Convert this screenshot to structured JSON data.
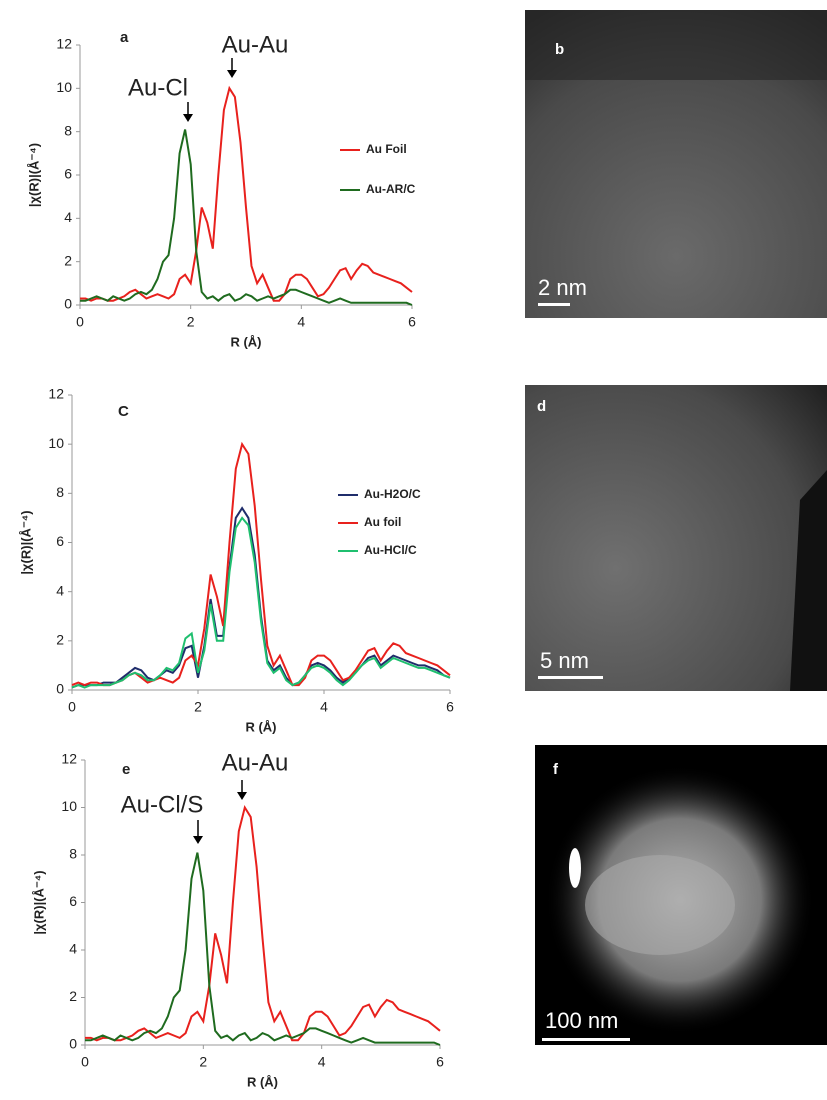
{
  "chart_data": [
    {
      "type": "line",
      "panel_label": "a",
      "xlabel": "R (Å)",
      "ylabel": "|χ(R)|(Å⁻⁴)",
      "xlim": [
        0,
        6
      ],
      "ylim": [
        0,
        12
      ],
      "xticks": [
        0,
        2,
        4,
        6
      ],
      "yticks": [
        0,
        2,
        4,
        6,
        8,
        10,
        12
      ],
      "annotations": [
        "Au-Au",
        "Au-Cl"
      ],
      "x": [
        0,
        0.1,
        0.2,
        0.3,
        0.4,
        0.5,
        0.6,
        0.7,
        0.8,
        0.9,
        1,
        1.1,
        1.2,
        1.3,
        1.4,
        1.5,
        1.6,
        1.7,
        1.8,
        1.9,
        2,
        2.1,
        2.2,
        2.3,
        2.4,
        2.5,
        2.6,
        2.7,
        2.8,
        2.9,
        3,
        3.1,
        3.2,
        3.3,
        3.4,
        3.5,
        3.6,
        3.7,
        3.8,
        3.9,
        4,
        4.1,
        4.2,
        4.3,
        4.4,
        4.5,
        4.6,
        4.7,
        4.8,
        4.9,
        5,
        5.1,
        5.2,
        5.3,
        5.4,
        5.5,
        5.6,
        5.7,
        5.8,
        5.9,
        6
      ],
      "series": [
        {
          "name": "Au Foil",
          "color": "#e8211d",
          "values": [
            0.3,
            0.3,
            0.2,
            0.3,
            0.3,
            0.2,
            0.2,
            0.3,
            0.4,
            0.6,
            0.7,
            0.5,
            0.3,
            0.4,
            0.5,
            0.4,
            0.3,
            0.5,
            1.2,
            1.4,
            1.0,
            2.5,
            4.5,
            3.8,
            2.6,
            6.0,
            9.0,
            10.0,
            9.6,
            7.5,
            4.5,
            1.8,
            1.0,
            1.4,
            0.8,
            0.2,
            0.2,
            0.5,
            1.2,
            1.4,
            1.4,
            1.2,
            0.8,
            0.4,
            0.5,
            0.8,
            1.2,
            1.6,
            1.7,
            1.2,
            1.6,
            1.9,
            1.8,
            1.5,
            1.4,
            1.3,
            1.2,
            1.1,
            1.0,
            0.8,
            0.6
          ]
        },
        {
          "name": "Au-AR/C",
          "color": "#1f6b1f",
          "values": [
            0.2,
            0.2,
            0.3,
            0.4,
            0.3,
            0.2,
            0.4,
            0.3,
            0.2,
            0.3,
            0.5,
            0.6,
            0.5,
            0.7,
            1.2,
            2.0,
            2.3,
            4.0,
            7.0,
            8.1,
            6.5,
            2.5,
            0.6,
            0.3,
            0.4,
            0.2,
            0.4,
            0.5,
            0.2,
            0.3,
            0.5,
            0.4,
            0.2,
            0.3,
            0.4,
            0.3,
            0.4,
            0.5,
            0.7,
            0.7,
            0.6,
            0.5,
            0.4,
            0.3,
            0.2,
            0.1,
            0.2,
            0.3,
            0.2,
            0.1,
            0.1,
            0.1,
            0.1,
            0.1,
            0.1,
            0.1,
            0.1,
            0.1,
            0.1,
            0.1,
            0.0
          ]
        }
      ]
    },
    {
      "type": "line",
      "panel_label": "C",
      "xlabel": "R (Å)",
      "ylabel": "|χ(R)|(Å⁻⁴)",
      "xlim": [
        0,
        6
      ],
      "ylim": [
        0,
        12
      ],
      "xticks": [
        0,
        2,
        4,
        6
      ],
      "yticks": [
        0,
        2,
        4,
        6,
        8,
        10,
        12
      ],
      "x": [
        0,
        0.1,
        0.2,
        0.3,
        0.4,
        0.5,
        0.6,
        0.7,
        0.8,
        0.9,
        1,
        1.1,
        1.2,
        1.3,
        1.4,
        1.5,
        1.6,
        1.7,
        1.8,
        1.9,
        2,
        2.1,
        2.2,
        2.3,
        2.4,
        2.5,
        2.6,
        2.7,
        2.8,
        2.9,
        3,
        3.1,
        3.2,
        3.3,
        3.4,
        3.5,
        3.6,
        3.7,
        3.8,
        3.9,
        4,
        4.1,
        4.2,
        4.3,
        4.4,
        4.5,
        4.6,
        4.7,
        4.8,
        4.9,
        5,
        5.1,
        5.2,
        5.3,
        5.4,
        5.5,
        5.6,
        5.7,
        5.8,
        5.9,
        6
      ],
      "series": [
        {
          "name": "Au-H2O/C",
          "color": "#1f2d6b",
          "values": [
            0.1,
            0.2,
            0.2,
            0.2,
            0.2,
            0.3,
            0.3,
            0.3,
            0.5,
            0.7,
            0.9,
            0.8,
            0.5,
            0.4,
            0.6,
            0.8,
            0.7,
            1.0,
            1.7,
            1.8,
            0.5,
            1.8,
            3.7,
            2.2,
            2.2,
            5.0,
            7.0,
            7.4,
            7.0,
            5.5,
            3.0,
            1.2,
            0.8,
            1.0,
            0.5,
            0.2,
            0.3,
            0.6,
            1.0,
            1.1,
            1.0,
            0.8,
            0.5,
            0.3,
            0.5,
            0.7,
            1.0,
            1.3,
            1.4,
            1.0,
            1.2,
            1.4,
            1.3,
            1.2,
            1.1,
            1.0,
            1.0,
            0.9,
            0.8,
            0.6,
            0.5
          ]
        },
        {
          "name": "Au foil",
          "color": "#e8211d",
          "values": [
            0.2,
            0.3,
            0.2,
            0.3,
            0.3,
            0.2,
            0.2,
            0.3,
            0.4,
            0.6,
            0.7,
            0.5,
            0.3,
            0.4,
            0.5,
            0.4,
            0.3,
            0.5,
            1.2,
            1.4,
            1.0,
            2.5,
            4.7,
            3.8,
            2.6,
            6.0,
            9.0,
            10.0,
            9.6,
            7.5,
            4.5,
            1.8,
            1.0,
            1.4,
            0.8,
            0.2,
            0.2,
            0.5,
            1.2,
            1.4,
            1.4,
            1.2,
            0.8,
            0.4,
            0.5,
            0.8,
            1.2,
            1.6,
            1.7,
            1.2,
            1.6,
            1.9,
            1.8,
            1.5,
            1.4,
            1.3,
            1.2,
            1.1,
            1.0,
            0.8,
            0.6
          ]
        },
        {
          "name": "Au-HCl/C",
          "color": "#1fbf6f",
          "values": [
            0.1,
            0.2,
            0.1,
            0.2,
            0.2,
            0.2,
            0.2,
            0.3,
            0.4,
            0.6,
            0.7,
            0.6,
            0.4,
            0.4,
            0.6,
            0.9,
            0.8,
            1.1,
            2.1,
            2.3,
            0.7,
            1.6,
            3.5,
            2.0,
            2.0,
            4.8,
            6.6,
            7.0,
            6.7,
            5.2,
            2.8,
            1.1,
            0.7,
            0.9,
            0.4,
            0.2,
            0.3,
            0.6,
            0.9,
            1.0,
            0.9,
            0.7,
            0.4,
            0.2,
            0.4,
            0.7,
            1.0,
            1.2,
            1.3,
            0.9,
            1.1,
            1.3,
            1.2,
            1.1,
            1.0,
            0.9,
            0.9,
            0.8,
            0.7,
            0.6,
            0.5
          ]
        }
      ]
    },
    {
      "type": "line",
      "panel_label": "e",
      "xlabel": "R (Å)",
      "ylabel": "|χ(R)|(Å⁻⁴)",
      "xlim": [
        0,
        6
      ],
      "ylim": [
        0,
        12
      ],
      "xticks": [
        0,
        2,
        4,
        6
      ],
      "yticks": [
        0,
        2,
        4,
        6,
        8,
        10,
        12
      ],
      "annotations": [
        "Au-Au",
        "Au-Cl/S"
      ],
      "x": [
        0,
        0.1,
        0.2,
        0.3,
        0.4,
        0.5,
        0.6,
        0.7,
        0.8,
        0.9,
        1,
        1.1,
        1.2,
        1.3,
        1.4,
        1.5,
        1.6,
        1.7,
        1.8,
        1.9,
        2,
        2.1,
        2.2,
        2.3,
        2.4,
        2.5,
        2.6,
        2.7,
        2.8,
        2.9,
        3,
        3.1,
        3.2,
        3.3,
        3.4,
        3.5,
        3.6,
        3.7,
        3.8,
        3.9,
        4,
        4.1,
        4.2,
        4.3,
        4.4,
        4.5,
        4.6,
        4.7,
        4.8,
        4.9,
        5,
        5.1,
        5.2,
        5.3,
        5.4,
        5.5,
        5.6,
        5.7,
        5.8,
        5.9,
        6
      ],
      "series": [
        {
          "color": "#e8211d",
          "values": [
            0.3,
            0.3,
            0.2,
            0.3,
            0.3,
            0.2,
            0.2,
            0.3,
            0.4,
            0.6,
            0.7,
            0.5,
            0.3,
            0.4,
            0.5,
            0.4,
            0.3,
            0.5,
            1.2,
            1.4,
            1.0,
            2.5,
            4.7,
            3.8,
            2.6,
            6.0,
            9.0,
            10.0,
            9.6,
            7.5,
            4.5,
            1.8,
            1.0,
            1.4,
            0.8,
            0.2,
            0.2,
            0.5,
            1.2,
            1.4,
            1.4,
            1.2,
            0.8,
            0.4,
            0.5,
            0.8,
            1.2,
            1.6,
            1.7,
            1.2,
            1.6,
            1.9,
            1.8,
            1.5,
            1.4,
            1.3,
            1.2,
            1.1,
            1.0,
            0.8,
            0.6
          ]
        },
        {
          "color": "#1f6b1f",
          "values": [
            0.2,
            0.2,
            0.3,
            0.4,
            0.3,
            0.2,
            0.4,
            0.3,
            0.2,
            0.3,
            0.5,
            0.6,
            0.5,
            0.7,
            1.2,
            2.0,
            2.3,
            4.0,
            7.0,
            8.1,
            6.5,
            2.5,
            0.6,
            0.3,
            0.4,
            0.2,
            0.4,
            0.5,
            0.2,
            0.3,
            0.5,
            0.4,
            0.2,
            0.3,
            0.4,
            0.3,
            0.4,
            0.5,
            0.7,
            0.7,
            0.6,
            0.5,
            0.4,
            0.3,
            0.2,
            0.1,
            0.2,
            0.3,
            0.2,
            0.1,
            0.1,
            0.1,
            0.1,
            0.1,
            0.1,
            0.1,
            0.1,
            0.1,
            0.1,
            0.1,
            0.0
          ]
        }
      ]
    }
  ],
  "images": [
    {
      "panel_label": "b",
      "scale_bar": "2 nm"
    },
    {
      "panel_label": "d",
      "scale_bar": "5 nm"
    },
    {
      "panel_label": "f",
      "scale_bar": "100 nm"
    }
  ]
}
